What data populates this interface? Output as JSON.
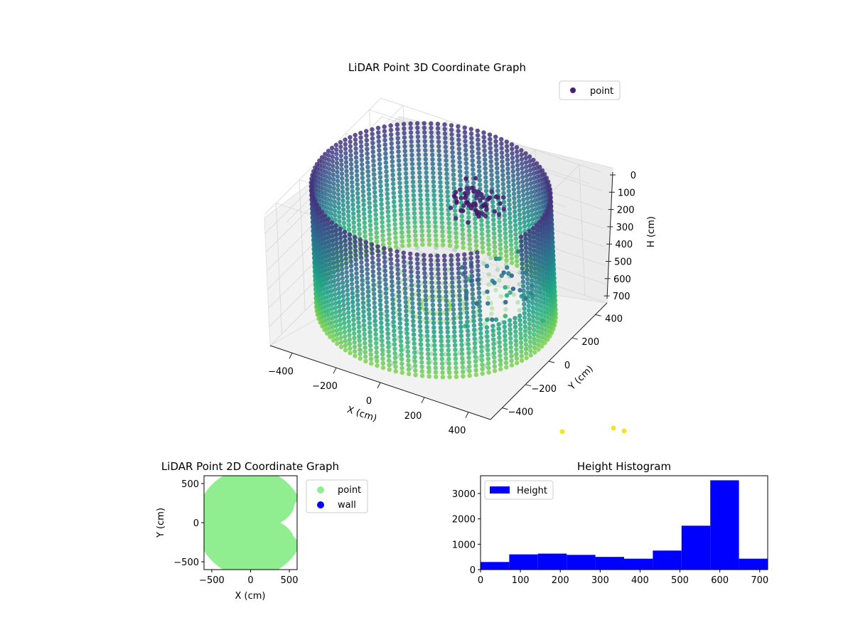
{
  "charts": {
    "three_d": {
      "title": "LiDAR Point 3D Coordinate Graph",
      "legend_label": "point",
      "xlabel": "X (cm)",
      "ylabel": "Y (cm)",
      "zlabel": "H (cm)",
      "x_ticks": [
        "−400",
        "−200",
        "0",
        "200",
        "400"
      ],
      "y_ticks": [
        "400",
        "200",
        "0",
        "−200",
        "−400"
      ],
      "z_ticks": [
        "0",
        "100",
        "200",
        "300",
        "400",
        "500",
        "600",
        "700"
      ]
    },
    "two_d": {
      "title": "LiDAR Point 2D Coordinate Graph",
      "legend_point": "point",
      "legend_wall": "wall",
      "xlabel": "X (cm)",
      "ylabel": "Y (cm)",
      "x_ticks": [
        "−500",
        "0",
        "500"
      ],
      "y_ticks": [
        "500",
        "0",
        "−500"
      ]
    },
    "histogram": {
      "title": "Height Histogram",
      "legend_label": "Height",
      "x_ticks": [
        "0",
        "100",
        "200",
        "300",
        "400",
        "500",
        "600",
        "700"
      ],
      "y_ticks": [
        "0",
        "1000",
        "2000",
        "3000"
      ]
    }
  },
  "colors": {
    "point_legend": "#482173",
    "two_d_point": "#90ee90",
    "two_d_wall": "#0000ff",
    "histogram_bar": "#0000ff"
  },
  "chart_data": [
    {
      "type": "scatter",
      "projection": "3d",
      "title": "LiDAR Point 3D Coordinate Graph",
      "xlabel": "X (cm)",
      "ylabel": "Y (cm)",
      "zlabel": "H (cm)",
      "xlim": [
        -500,
        500
      ],
      "ylim": [
        -500,
        500
      ],
      "zlim": [
        0,
        700
      ],
      "z_inverted": true,
      "colormap": "viridis",
      "legend": [
        "point"
      ],
      "legend_position": "top-right",
      "grid": true
    },
    {
      "type": "scatter",
      "title": "LiDAR Point 2D Coordinate Graph",
      "xlabel": "X (cm)",
      "ylabel": "Y (cm)",
      "xlim": [
        -600,
        600
      ],
      "ylim": [
        -600,
        600
      ],
      "legend": [
        "point",
        "wall"
      ],
      "legend_position": "outside-right",
      "point_cloud_radius": 600
    },
    {
      "type": "bar",
      "title": "Height Histogram",
      "bin_edges": [
        0,
        72,
        144,
        216,
        288,
        360,
        432,
        504,
        576,
        648,
        720
      ],
      "values": [
        300,
        600,
        630,
        580,
        500,
        430,
        750,
        1730,
        3520,
        430
      ],
      "xlim": [
        0,
        720
      ],
      "ylim": [
        0,
        3700
      ],
      "legend": [
        "Height"
      ],
      "legend_position": "top-left"
    }
  ]
}
